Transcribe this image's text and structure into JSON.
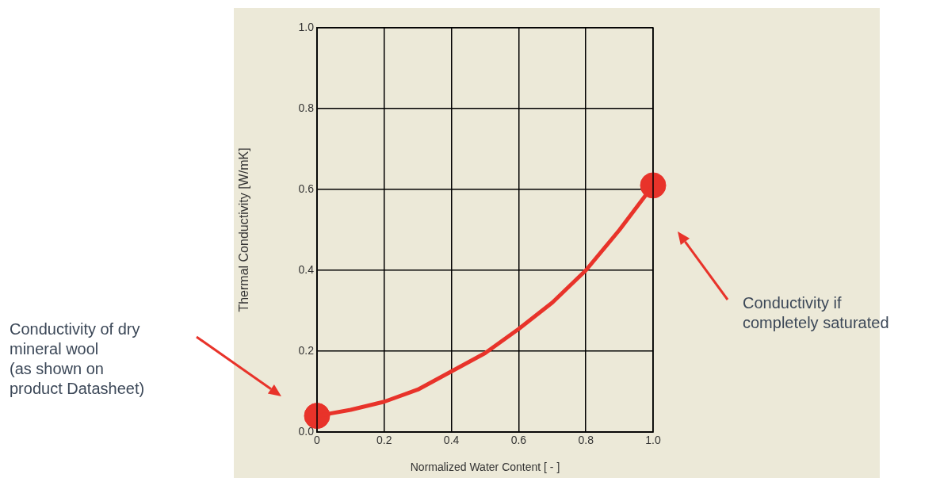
{
  "chart_data": {
    "type": "line",
    "xlabel": "Normalized Water Content [ - ]",
    "ylabel": "Thermal Conductivity [W/mK]",
    "series": [
      {
        "color": "#e8332a",
        "marker": "none",
        "x": [
          0,
          0.1,
          0.2,
          0.3,
          0.4,
          0.5,
          0.6,
          0.7,
          0.8,
          0.9,
          1.0
        ],
        "values": [
          0.04,
          0.055,
          0.075,
          0.105,
          0.15,
          0.195,
          0.255,
          0.32,
          0.4,
          0.5,
          0.61
        ]
      },
      {
        "type": "scatter",
        "color": "#e8332a",
        "marker": "circle",
        "x": [
          0,
          1.0
        ],
        "values": [
          0.04,
          0.61
        ]
      }
    ],
    "xlim": [
      0,
      1
    ],
    "ylim": [
      0,
      1
    ],
    "xticks": [
      {
        "value": 0,
        "label": "0"
      },
      0.2,
      0.4,
      0.6,
      0.8,
      {
        "value": 1,
        "label": "1.0"
      }
    ],
    "yticks": [
      {
        "value": 0,
        "label": "0.0"
      },
      0.2,
      0.4,
      0.6,
      0.8,
      {
        "value": 1,
        "label": "1.0"
      }
    ],
    "grid": true,
    "annotations": [
      "Conductivity of dry\nmineral wool\n(as shown on\nproduct Datasheet)",
      "Conductivity if\ncompletely saturated"
    ]
  }
}
